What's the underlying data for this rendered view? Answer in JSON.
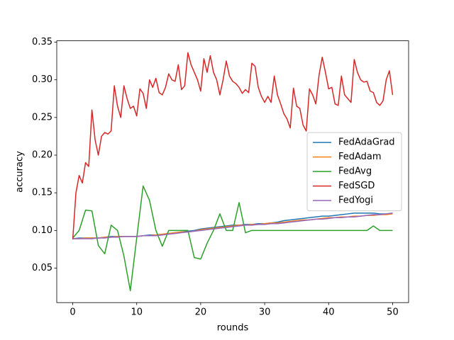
{
  "chart_data": {
    "type": "line",
    "x_label": "rounds",
    "y_label": "accuracy",
    "xlim": [
      -2.5,
      52.5
    ],
    "ylim": [
      0.0042,
      0.3518
    ],
    "xticks": [
      0,
      10,
      20,
      30,
      40,
      50
    ],
    "yticks": [
      0.05,
      {
        "value": 0.1,
        "label": "0.10"
      },
      0.15,
      {
        "value": 0.2,
        "label": "0.20"
      },
      0.25,
      {
        "value": 0.3,
        "label": "0.30"
      },
      0.35
    ],
    "legend": "center right",
    "x": [
      0,
      1,
      2,
      3,
      4,
      5,
      6,
      7,
      8,
      9,
      10,
      11,
      12,
      13,
      14,
      15,
      16,
      17,
      18,
      19,
      20,
      21,
      22,
      23,
      24,
      25,
      26,
      27,
      28,
      29,
      30,
      31,
      32,
      33,
      34,
      35,
      36,
      37,
      38,
      39,
      40,
      41,
      42,
      43,
      44,
      45,
      46,
      47,
      48,
      49,
      50
    ],
    "series": [
      {
        "name": "FedAdaGrad",
        "color": "#1f77b4",
        "values": [
          0.089,
          0.09,
          0.09,
          0.09,
          0.09,
          0.091,
          0.092,
          0.092,
          0.092,
          0.092,
          0.092,
          0.093,
          0.094,
          0.094,
          0.095,
          0.096,
          0.097,
          0.098,
          0.099,
          0.1,
          0.102,
          0.103,
          0.104,
          0.105,
          0.106,
          0.107,
          0.107,
          0.108,
          0.108,
          0.109,
          0.109,
          0.11,
          0.111,
          0.113,
          0.114,
          0.115,
          0.116,
          0.117,
          0.118,
          0.119,
          0.119,
          0.12,
          0.121,
          0.122,
          0.123,
          0.123,
          0.123,
          0.123,
          0.122,
          0.122,
          0.123
        ]
      },
      {
        "name": "FedAdam",
        "color": "#ff7f0e",
        "values": [
          0.089,
          0.089,
          0.09,
          0.09,
          0.09,
          0.091,
          0.091,
          0.092,
          0.092,
          0.092,
          0.092,
          0.093,
          0.093,
          0.094,
          0.095,
          0.096,
          0.097,
          0.098,
          0.098,
          0.099,
          0.101,
          0.102,
          0.103,
          0.104,
          0.105,
          0.106,
          0.107,
          0.107,
          0.108,
          0.108,
          0.109,
          0.11,
          0.11,
          0.111,
          0.112,
          0.113,
          0.114,
          0.114,
          0.115,
          0.116,
          0.117,
          0.117,
          0.118,
          0.118,
          0.119,
          0.119,
          0.12,
          0.12,
          0.121,
          0.121,
          0.122
        ]
      },
      {
        "name": "FedAvg",
        "color": "#2ca02c",
        "values": [
          0.09,
          0.1,
          0.127,
          0.126,
          0.08,
          0.069,
          0.107,
          0.1,
          0.066,
          0.02,
          0.09,
          0.159,
          0.14,
          0.1,
          0.079,
          0.1,
          0.1,
          0.1,
          0.1,
          0.064,
          0.062,
          0.083,
          0.1,
          0.122,
          0.1,
          0.1,
          0.137,
          0.097,
          0.1,
          0.1,
          0.1,
          0.1,
          0.1,
          0.1,
          0.1,
          0.1,
          0.1,
          0.1,
          0.1,
          0.1,
          0.1,
          0.1,
          0.1,
          0.1,
          0.1,
          0.1,
          0.1,
          0.106,
          0.1,
          0.1,
          0.1
        ]
      },
      {
        "name": "FedSGD",
        "color": "#d62728",
        "x": [
          0,
          0.5,
          1,
          1.5,
          2,
          2.5,
          3,
          3.5,
          4,
          4.5,
          5,
          5.5,
          6,
          6.5,
          7,
          7.5,
          8,
          8.5,
          9,
          9.5,
          10,
          10.5,
          11,
          11.5,
          12,
          12.5,
          13,
          13.5,
          14,
          14.5,
          15,
          15.5,
          16,
          16.5,
          17,
          17.5,
          18,
          18.5,
          19,
          19.5,
          20,
          20.5,
          21,
          21.5,
          22,
          22.5,
          23,
          23.5,
          24,
          24.5,
          25,
          25.5,
          26,
          26.5,
          27,
          27.5,
          28,
          28.5,
          29,
          29.5,
          30,
          30.5,
          31,
          31.5,
          32,
          32.5,
          33,
          33.5,
          34,
          34.5,
          35,
          35.5,
          36,
          36.5,
          37,
          37.5,
          38,
          38.5,
          39,
          39.5,
          40,
          40.5,
          41,
          41.5,
          42,
          42.5,
          43,
          43.5,
          44,
          44.5,
          45,
          45.5,
          46,
          46.5,
          47,
          47.5,
          48,
          48.5,
          49,
          49.5,
          50
        ],
        "values": [
          0.088,
          0.15,
          0.173,
          0.163,
          0.19,
          0.185,
          0.26,
          0.22,
          0.2,
          0.225,
          0.23,
          0.228,
          0.232,
          0.292,
          0.265,
          0.25,
          0.292,
          0.275,
          0.262,
          0.265,
          0.252,
          0.288,
          0.282,
          0.262,
          0.3,
          0.29,
          0.302,
          0.283,
          0.28,
          0.29,
          0.308,
          0.3,
          0.298,
          0.32,
          0.287,
          0.292,
          0.336,
          0.32,
          0.31,
          0.3,
          0.285,
          0.328,
          0.31,
          0.332,
          0.31,
          0.3,
          0.28,
          0.3,
          0.325,
          0.305,
          0.298,
          0.295,
          0.29,
          0.282,
          0.287,
          0.283,
          0.322,
          0.318,
          0.29,
          0.278,
          0.27,
          0.278,
          0.27,
          0.305,
          0.28,
          0.268,
          0.255,
          0.248,
          0.236,
          0.289,
          0.265,
          0.262,
          0.24,
          0.232,
          0.288,
          0.28,
          0.268,
          0.306,
          0.33,
          0.31,
          0.288,
          0.29,
          0.268,
          0.266,
          0.305,
          0.28,
          0.275,
          0.27,
          0.327,
          0.31,
          0.3,
          0.297,
          0.298,
          0.285,
          0.283,
          0.27,
          0.266,
          0.272,
          0.3,
          0.312,
          0.28
        ]
      },
      {
        "name": "FedYogi",
        "color": "#9467bd",
        "values": [
          0.089,
          0.089,
          0.089,
          0.089,
          0.09,
          0.09,
          0.091,
          0.091,
          0.092,
          0.092,
          0.092,
          0.093,
          0.093,
          0.093,
          0.094,
          0.095,
          0.096,
          0.097,
          0.098,
          0.099,
          0.1,
          0.101,
          0.102,
          0.103,
          0.104,
          0.105,
          0.106,
          0.107,
          0.107,
          0.108,
          0.108,
          0.109,
          0.109,
          0.11,
          0.111,
          0.112,
          0.113,
          0.114,
          0.115,
          0.115,
          0.116,
          0.117,
          0.117,
          0.118,
          0.118,
          0.119,
          0.12,
          0.121,
          0.121,
          0.122,
          0.123
        ]
      }
    ]
  }
}
